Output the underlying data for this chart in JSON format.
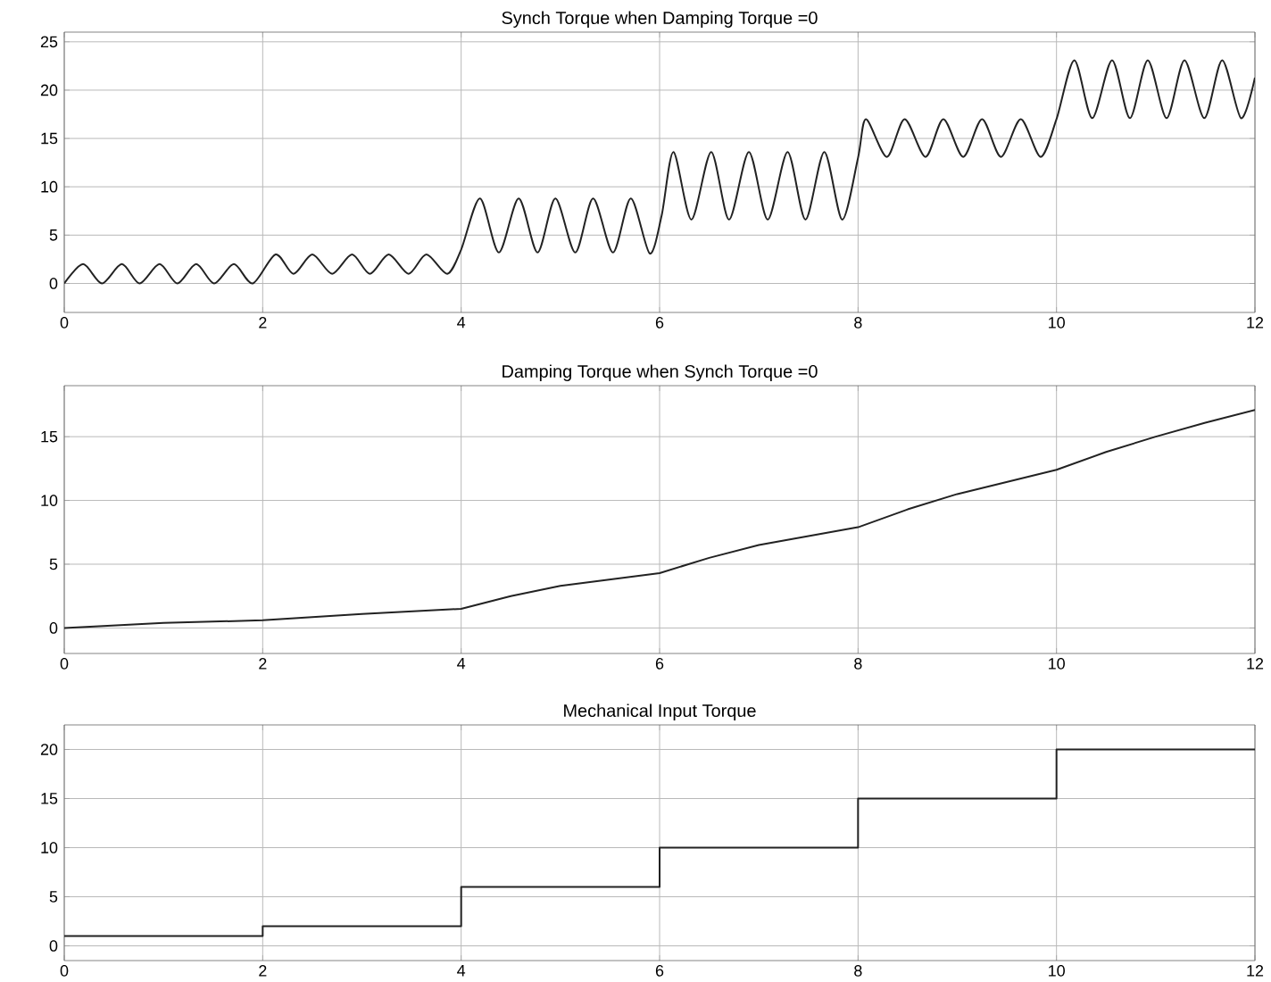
{
  "chart_data": [
    {
      "type": "line",
      "title": "Synch Torque when Damping Torque =0",
      "xlim": [
        0,
        12
      ],
      "xticks": [
        0,
        2,
        4,
        6,
        8,
        10,
        12
      ],
      "ylim": [
        -3,
        26
      ],
      "yticks": [
        0,
        5,
        10,
        15,
        20,
        25
      ],
      "grid": true,
      "color": "#222222",
      "x": [
        0,
        0.19,
        0.38,
        0.58,
        0.76,
        0.96,
        1.14,
        1.33,
        1.51,
        1.71,
        1.9,
        2.13,
        2.31,
        2.5,
        2.7,
        2.9,
        3.08,
        3.27,
        3.47,
        3.65,
        3.86,
        4.0,
        4.19,
        4.38,
        4.58,
        4.77,
        4.95,
        5.15,
        5.33,
        5.53,
        5.71,
        5.9,
        6.02,
        6.14,
        6.32,
        6.52,
        6.7,
        6.9,
        7.09,
        7.29,
        7.47,
        7.66,
        7.84,
        8.0,
        8.08,
        8.29,
        8.47,
        8.68,
        8.86,
        9.06,
        9.25,
        9.44,
        9.64,
        9.84,
        10.0,
        10.18,
        10.36,
        10.56,
        10.74,
        10.92,
        11.11,
        11.29,
        11.49,
        11.67,
        11.86,
        12
      ],
      "values": [
        0,
        2,
        0,
        2,
        0,
        2,
        0,
        2,
        0,
        2,
        0,
        3,
        1,
        3,
        1,
        3,
        1,
        3,
        1,
        3,
        1,
        3.5,
        8.8,
        3.2,
        8.8,
        3.2,
        8.8,
        3.2,
        8.8,
        3.2,
        8.8,
        3.1,
        7,
        13.6,
        6.6,
        13.6,
        6.6,
        13.6,
        6.6,
        13.6,
        6.6,
        13.6,
        6.6,
        13,
        17,
        13.1,
        17,
        13.1,
        17,
        13.1,
        17,
        13.1,
        17,
        13.1,
        17,
        23.1,
        17.1,
        23.1,
        17.1,
        23.1,
        17.1,
        23.1,
        17.1,
        23.1,
        17.1,
        21.3
      ]
    },
    {
      "type": "line",
      "title": "Damping Torque when Synch Torque  =0",
      "xlim": [
        0,
        12
      ],
      "xticks": [
        0,
        2,
        4,
        6,
        8,
        10,
        12
      ],
      "ylim": [
        -2,
        19
      ],
      "yticks": [
        0,
        5,
        10,
        15
      ],
      "grid": true,
      "color": "#222222",
      "x": [
        0,
        1,
        2,
        3,
        4,
        4.5,
        5,
        6,
        6.5,
        7,
        8,
        8.5,
        9,
        10,
        10.5,
        11,
        11.5,
        12
      ],
      "values": [
        0,
        0.4,
        0.6,
        1.1,
        1.5,
        2.5,
        3.3,
        4.3,
        5.5,
        6.5,
        7.9,
        9.3,
        10.5,
        12.4,
        13.8,
        15,
        16.1,
        17.1
      ]
    },
    {
      "type": "step",
      "title": "Mechanical Input Torque",
      "xlim": [
        0,
        12
      ],
      "xticks": [
        0,
        2,
        4,
        6,
        8,
        10,
        12
      ],
      "ylim": [
        -1.5,
        22.5
      ],
      "yticks": [
        0,
        5,
        10,
        15,
        20
      ],
      "grid": true,
      "color": "#222222",
      "x": [
        0,
        2,
        4,
        6,
        8,
        10,
        12
      ],
      "values": [
        1,
        2,
        6,
        10,
        15,
        20,
        20
      ]
    }
  ]
}
